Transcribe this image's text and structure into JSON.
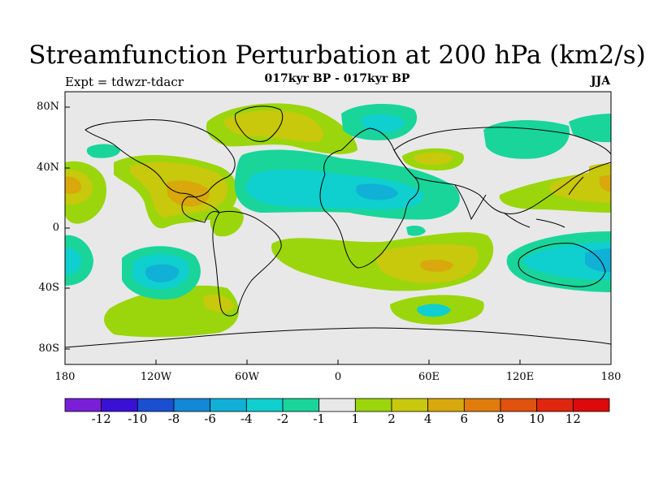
{
  "title": "Streamfunction Perturbation at 200 hPa (km2/s)",
  "experiment": "Expt = tdwzr-tdacr",
  "period": "017kyr BP - 017kyr BP",
  "season": "JJA",
  "lat_labels": [
    "80N",
    "40N",
    "0",
    "40S",
    "80S"
  ],
  "lon_labels": [
    "180",
    "120W",
    "60W",
    "0",
    "60E",
    "120E",
    "180"
  ],
  "colorbar": {
    "labels": [
      "-12",
      "-10",
      "-8",
      "-6",
      "-4",
      "-2",
      "-1",
      "1",
      "2",
      "4",
      "6",
      "8",
      "10",
      "12"
    ],
    "colors": [
      "#7a1fd6",
      "#3a10d6",
      "#1a4fd0",
      "#1288d6",
      "#11b0d6",
      "#0fcfcf",
      "#19d59a",
      "#e8e8e8",
      "#9bd60c",
      "#c8c80c",
      "#d8a80c",
      "#e07c0c",
      "#e0520e",
      "#e0260e",
      "#dc0a0a"
    ]
  },
  "colors": {
    "background": "#e8e8e8",
    "coast": "#000000"
  }
}
